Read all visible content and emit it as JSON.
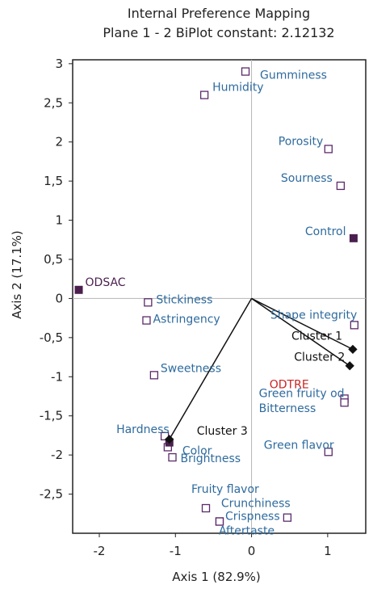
{
  "chart_data": {
    "type": "scatter",
    "title": "Internal Preference Mapping",
    "subtitle": "Plane 1 - 2 BiPlot constant: 2.12132",
    "xlabel": "Axis 1 (82.9%)",
    "ylabel": "Axis 2 (17.1%)",
    "xlim": [
      -2.35,
      1.5
    ],
    "ylim": [
      -3.0,
      3.05
    ],
    "xticks": [
      {
        "value": -2,
        "label": "-2"
      },
      {
        "value": -1,
        "label": "-1"
      },
      {
        "value": 0,
        "label": "0"
      },
      {
        "value": 1,
        "label": "1"
      }
    ],
    "yticks": [
      {
        "value": 3,
        "label": "3"
      },
      {
        "value": 2.5,
        "label": "2,5"
      },
      {
        "value": 2,
        "label": "2"
      },
      {
        "value": 1.5,
        "label": "1,5"
      },
      {
        "value": 1,
        "label": "1"
      },
      {
        "value": 0.5,
        "label": "0,5"
      },
      {
        "value": 0,
        "label": "0"
      },
      {
        "value": -0.5,
        "label": "-0,5"
      },
      {
        "value": -1,
        "label": "-1"
      },
      {
        "value": -1.5,
        "label": "-1,5"
      },
      {
        "value": -2,
        "label": "-2"
      },
      {
        "value": -2.5,
        "label": "-2,5"
      }
    ],
    "grid": false,
    "reference_lines": {
      "x": 0,
      "y": 0
    },
    "attributes": [
      {
        "label": "Gumminess",
        "x": -0.08,
        "y": 2.9
      },
      {
        "label": "Humidity",
        "x": -0.62,
        "y": 2.6
      },
      {
        "label": "Porosity",
        "x": 1.01,
        "y": 1.91
      },
      {
        "label": "Sourness",
        "x": 1.17,
        "y": 1.44
      },
      {
        "label": "Stickiness",
        "x": -1.36,
        "y": -0.05
      },
      {
        "label": "Astringency",
        "x": -1.38,
        "y": -0.28
      },
      {
        "label": "Shape integrity",
        "x": 1.35,
        "y": -0.34
      },
      {
        "label": "Sweetness",
        "x": -1.28,
        "y": -0.98
      },
      {
        "label": "Green fruity od",
        "x": 1.22,
        "y": -1.28
      },
      {
        "label": "Bitterness",
        "x": 1.22,
        "y": -1.33
      },
      {
        "label": "Hardness",
        "x": -1.14,
        "y": -1.76
      },
      {
        "label": "Color",
        "x": -1.1,
        "y": -1.9
      },
      {
        "label": "Brightness",
        "x": -1.04,
        "y": -2.03
      },
      {
        "label": "Green flavor",
        "x": 1.01,
        "y": -1.96
      },
      {
        "label": "Fruity flavor",
        "x": -0.6,
        "y": -2.68
      },
      {
        "label": "Crunchiness",
        "x": 0.47,
        "y": -2.8
      },
      {
        "label": "Crispness",
        "x": -0.42,
        "y": -2.85
      },
      {
        "label": "Aftertaste",
        "x": -0.42,
        "y": -2.85
      }
    ],
    "products": [
      {
        "label": "Control",
        "x": 1.34,
        "y": 0.77
      },
      {
        "label": "ODSAC",
        "x": -2.27,
        "y": 0.11
      },
      {
        "label": "ODTRE",
        "x": -1.08,
        "y": -1.84
      }
    ],
    "clusters": [
      {
        "label": "Cluster 1",
        "x": 1.33,
        "y": -0.65
      },
      {
        "label": "Cluster 2",
        "x": 1.29,
        "y": -0.86
      },
      {
        "label": "Cluster 3",
        "x": -1.08,
        "y": -1.8
      }
    ],
    "colors": {
      "attribute": "#2e6b9e",
      "product": "#4a1f4e",
      "cluster_text": "#111111",
      "odtre_label": "#cc2222",
      "marker_outline": "#5b2a6b"
    }
  }
}
